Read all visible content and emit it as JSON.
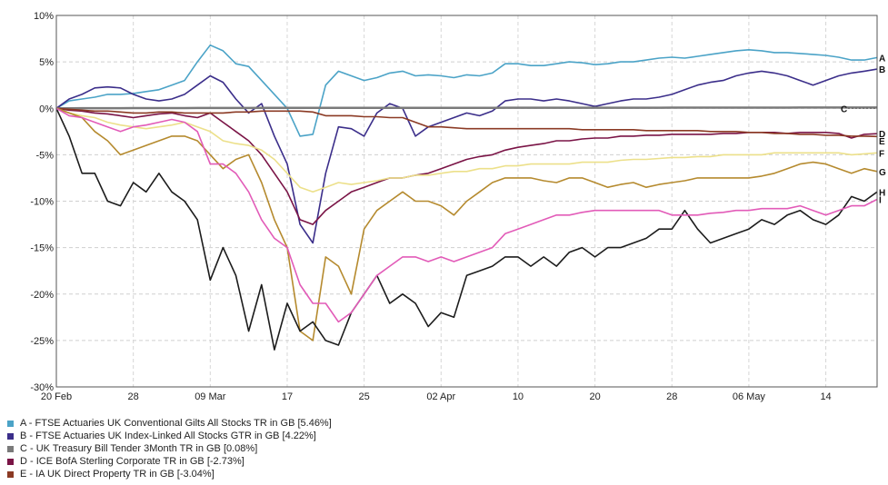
{
  "chart_data": {
    "type": "line",
    "ylim": [
      -30,
      10
    ],
    "yticks": [
      10,
      5,
      0,
      -5,
      -10,
      -15,
      -20,
      -25,
      -30
    ],
    "ytick_labels": [
      "10%",
      "5%",
      "0%",
      "-5%",
      "-10%",
      "-15%",
      "-20%",
      "-25%",
      "-30%"
    ],
    "x_count": 65,
    "xticks": [
      {
        "label": "20 Feb",
        "index": 0
      },
      {
        "label": "28",
        "index": 6
      },
      {
        "label": "09 Mar",
        "index": 12
      },
      {
        "label": "17",
        "index": 18
      },
      {
        "label": "25",
        "index": 24
      },
      {
        "label": "02 Apr",
        "index": 30
      },
      {
        "label": "10",
        "index": 36
      },
      {
        "label": "20",
        "index": 42
      },
      {
        "label": "28",
        "index": 48
      },
      {
        "label": "06 May",
        "index": 54
      },
      {
        "label": "14",
        "index": 60
      }
    ],
    "grid": true,
    "series": [
      {
        "letter": "A",
        "legend": "A - FTSE Actuaries UK Conventional Gilts All Stocks TR in GB [5.46%]",
        "color": "#4ba3c7",
        "values": [
          0,
          0.8,
          1.0,
          1.2,
          1.5,
          1.5,
          1.6,
          1.8,
          2.0,
          2.5,
          3.0,
          5.0,
          6.8,
          6.2,
          4.8,
          4.5,
          3.0,
          1.5,
          0,
          -3.0,
          -2.8,
          2.5,
          4.0,
          3.5,
          3.0,
          3.3,
          3.8,
          4.0,
          3.5,
          3.6,
          3.5,
          3.3,
          3.6,
          3.5,
          3.8,
          4.8,
          4.8,
          4.6,
          4.6,
          4.8,
          5.0,
          4.9,
          4.7,
          4.8,
          5.0,
          5.0,
          5.2,
          5.4,
          5.5,
          5.4,
          5.6,
          5.8,
          6.0,
          6.2,
          6.3,
          6.2,
          6.0,
          6.0,
          5.9,
          5.8,
          5.7,
          5.5,
          5.2,
          5.2,
          5.46
        ]
      },
      {
        "letter": "B",
        "legend": "B - FTSE Actuaries UK Index-Linked All Stocks GTR in GB [4.22%]",
        "color": "#3b2e8a",
        "values": [
          0,
          1.0,
          1.5,
          2.2,
          2.3,
          2.2,
          1.5,
          1.0,
          0.8,
          1.0,
          1.5,
          2.5,
          3.5,
          2.8,
          1.0,
          -0.5,
          0.5,
          -3.0,
          -6.0,
          -12.5,
          -14.5,
          -7.0,
          -2.0,
          -2.2,
          -3.0,
          -0.5,
          0.5,
          0,
          -3.0,
          -2.0,
          -1.5,
          -1.0,
          -0.5,
          -0.8,
          -0.3,
          0.8,
          1.0,
          1.0,
          0.8,
          1.0,
          0.8,
          0.5,
          0.2,
          0.5,
          0.8,
          1.0,
          1.0,
          1.2,
          1.5,
          2.0,
          2.5,
          2.8,
          3.0,
          3.5,
          3.8,
          4.0,
          3.8,
          3.5,
          3.0,
          2.5,
          3.0,
          3.5,
          3.8,
          4.0,
          4.22
        ]
      },
      {
        "letter": "C",
        "legend": "C - UK Treasury Bill Tender 3Month TR in GB [0.08%]",
        "color": "#7a7a7a",
        "values": [
          0,
          0,
          0.01,
          0.01,
          0.01,
          0.01,
          0.02,
          0.02,
          0.02,
          0.02,
          0.02,
          0.03,
          0.03,
          0.03,
          0.03,
          0.03,
          0.04,
          0.04,
          0.04,
          0.04,
          0.04,
          0.04,
          0.04,
          0.05,
          0.05,
          0.05,
          0.05,
          0.05,
          0.05,
          0.05,
          0.05,
          0.05,
          0.05,
          0.05,
          0.05,
          0.06,
          0.06,
          0.06,
          0.06,
          0.06,
          0.06,
          0.06,
          0.06,
          0.06,
          0.06,
          0.06,
          0.06,
          0.06,
          0.07,
          0.07,
          0.07,
          0.07,
          0.07,
          0.07,
          0.07,
          0.07,
          0.07,
          0.07,
          0.08,
          0.08,
          0.08,
          0.08,
          0.08,
          0.08,
          0.08
        ]
      },
      {
        "letter": "D",
        "legend": "D - ICE BofA Sterling Corporate TR in GB [-2.73%]",
        "color": "#7a1446",
        "values": [
          0,
          -0.2,
          -0.3,
          -0.5,
          -0.6,
          -0.8,
          -1.0,
          -0.8,
          -0.6,
          -0.5,
          -0.8,
          -1.0,
          -0.5,
          -1.5,
          -2.5,
          -3.5,
          -5.0,
          -7.0,
          -9.0,
          -12.0,
          -12.5,
          -11.0,
          -10.0,
          -9.0,
          -8.5,
          -8.0,
          -7.5,
          -7.5,
          -7.2,
          -7.0,
          -6.5,
          -6.0,
          -5.5,
          -5.2,
          -5.0,
          -4.5,
          -4.2,
          -4.0,
          -3.8,
          -3.5,
          -3.5,
          -3.3,
          -3.2,
          -3.2,
          -3.0,
          -3.0,
          -2.9,
          -2.9,
          -2.8,
          -2.8,
          -2.8,
          -2.8,
          -2.7,
          -2.7,
          -2.6,
          -2.6,
          -2.6,
          -2.7,
          -2.6,
          -2.6,
          -2.6,
          -2.7,
          -3.2,
          -2.8,
          -2.73
        ]
      },
      {
        "letter": "E",
        "legend": "E - IA UK Direct Property TR in GB [-3.04%]",
        "color": "#8b3a24",
        "values": [
          0,
          -0.1,
          -0.2,
          -0.3,
          -0.3,
          -0.4,
          -0.5,
          -0.5,
          -0.4,
          -0.4,
          -0.5,
          -0.5,
          -0.5,
          -0.5,
          -0.4,
          -0.4,
          -0.3,
          -0.3,
          -0.3,
          -0.3,
          -0.4,
          -0.8,
          -0.8,
          -0.8,
          -0.9,
          -0.9,
          -1.0,
          -1.0,
          -1.5,
          -2.0,
          -2.0,
          -2.1,
          -2.2,
          -2.2,
          -2.2,
          -2.2,
          -2.2,
          -2.2,
          -2.2,
          -2.2,
          -2.2,
          -2.3,
          -2.3,
          -2.3,
          -2.3,
          -2.3,
          -2.4,
          -2.4,
          -2.4,
          -2.4,
          -2.4,
          -2.5,
          -2.5,
          -2.5,
          -2.6,
          -2.6,
          -2.7,
          -2.7,
          -2.8,
          -2.8,
          -2.9,
          -2.9,
          -3.0,
          -3.0,
          -3.04
        ]
      },
      {
        "letter": "F",
        "legend": "",
        "color": "#ece08a",
        "values": [
          0,
          -0.5,
          -0.8,
          -1.0,
          -1.5,
          -1.8,
          -2.0,
          -2.2,
          -2.0,
          -1.8,
          -1.5,
          -2.0,
          -2.5,
          -3.5,
          -3.8,
          -4.0,
          -4.5,
          -5.5,
          -7.0,
          -8.5,
          -9.0,
          -8.5,
          -8.0,
          -8.2,
          -8.0,
          -7.8,
          -7.5,
          -7.5,
          -7.2,
          -7.2,
          -7.0,
          -6.8,
          -6.8,
          -6.5,
          -6.5,
          -6.2,
          -6.2,
          -6.0,
          -6.0,
          -6.0,
          -6.0,
          -5.8,
          -5.8,
          -5.8,
          -5.6,
          -5.5,
          -5.5,
          -5.4,
          -5.3,
          -5.3,
          -5.2,
          -5.2,
          -5.0,
          -5.0,
          -5.0,
          -5.0,
          -4.8,
          -4.8,
          -4.8,
          -4.8,
          -4.8,
          -4.8,
          -5.0,
          -4.9,
          -4.8
        ]
      },
      {
        "letter": "G",
        "legend": "",
        "color": "#b58a2e",
        "values": [
          0,
          -0.5,
          -1.0,
          -2.5,
          -3.5,
          -5.0,
          -4.5,
          -4.0,
          -3.5,
          -3.0,
          -3.0,
          -3.5,
          -5.0,
          -6.5,
          -5.5,
          -5.0,
          -8.0,
          -12.0,
          -15.0,
          -24.0,
          -25.0,
          -16.0,
          -17.0,
          -20.0,
          -13.0,
          -11.0,
          -10.0,
          -9.0,
          -10.0,
          -10.0,
          -10.5,
          -11.5,
          -10.0,
          -9.0,
          -8.0,
          -7.5,
          -7.5,
          -7.5,
          -7.8,
          -8.0,
          -7.5,
          -7.5,
          -8.0,
          -8.5,
          -8.2,
          -8.0,
          -8.5,
          -8.2,
          -8.0,
          -7.8,
          -7.5,
          -7.5,
          -7.5,
          -7.5,
          -7.5,
          -7.3,
          -7.0,
          -6.5,
          -6.0,
          -5.8,
          -6.0,
          -6.5,
          -7.0,
          -6.5,
          -6.8
        ]
      },
      {
        "letter": "H",
        "legend": "",
        "color": "#1c1c1c",
        "values": [
          0,
          -3.0,
          -7.0,
          -7.0,
          -10.0,
          -10.5,
          -8.0,
          -9.0,
          -7.0,
          -9.0,
          -10.0,
          -12.0,
          -18.5,
          -15.0,
          -18.0,
          -24.0,
          -19.0,
          -26.0,
          -21.0,
          -24.0,
          -23.0,
          -25.0,
          -25.5,
          -22.0,
          -20.0,
          -18.0,
          -21.0,
          -20.0,
          -21.0,
          -23.5,
          -22.0,
          -22.5,
          -18.0,
          -17.5,
          -17.0,
          -16.0,
          -16.0,
          -17.0,
          -16.0,
          -17.0,
          -15.5,
          -15.0,
          -16.0,
          -15.0,
          -15.0,
          -14.5,
          -14.0,
          -13.0,
          -13.0,
          -11.0,
          -13.0,
          -14.5,
          -14.0,
          -13.5,
          -13.0,
          -12.0,
          -12.5,
          -11.5,
          -11.0,
          -12.0,
          -12.5,
          -11.5,
          -9.5,
          -10.0,
          -9.0
        ]
      },
      {
        "letter": "I",
        "legend": "",
        "color": "#e25bb8",
        "values": [
          0,
          -0.8,
          -1.0,
          -1.5,
          -2.0,
          -2.5,
          -2.0,
          -1.8,
          -1.5,
          -1.2,
          -1.5,
          -2.5,
          -6.0,
          -6.0,
          -7.0,
          -9.0,
          -12.0,
          -14.0,
          -15.0,
          -19.0,
          -21.0,
          -21.0,
          -23.0,
          -22.0,
          -20.0,
          -18.0,
          -17.0,
          -16.0,
          -16.0,
          -16.5,
          -16.0,
          -16.5,
          -16.0,
          -15.5,
          -15.0,
          -13.5,
          -13.0,
          -12.5,
          -12.0,
          -11.5,
          -11.5,
          -11.2,
          -11.0,
          -11.0,
          -11.0,
          -11.0,
          -11.0,
          -11.0,
          -11.5,
          -11.5,
          -11.5,
          -11.3,
          -11.2,
          -11.0,
          -11.0,
          -10.8,
          -10.8,
          -10.8,
          -10.5,
          -11.0,
          -11.5,
          -11.0,
          -10.5,
          -10.5,
          -9.8
        ]
      }
    ]
  }
}
